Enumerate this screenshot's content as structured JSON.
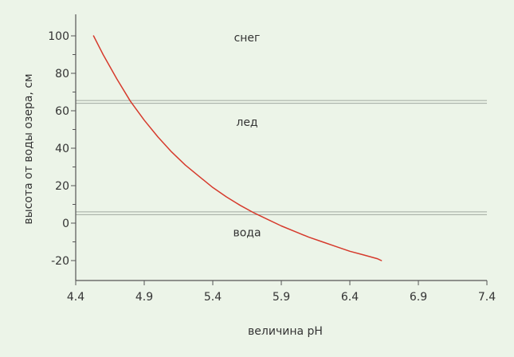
{
  "chart_data": {
    "type": "line",
    "title": "",
    "xlabel": "величина pH",
    "ylabel": "высота от воды озера, см",
    "xlim": [
      4.4,
      7.4
    ],
    "ylim": [
      -30,
      110
    ],
    "x_ticks": [
      4.4,
      4.9,
      5.4,
      5.9,
      6.4,
      6.9,
      7.4
    ],
    "x_tick_labels": [
      "4.4",
      "4.9",
      "5.4",
      "5.9",
      "6.4",
      "6.9",
      "7.4"
    ],
    "y_ticks": [
      -20,
      0,
      20,
      40,
      60,
      80,
      100
    ],
    "y_tick_labels": [
      "-20",
      "0",
      "20",
      "40",
      "60",
      "80",
      "100"
    ],
    "grid": false,
    "series": [
      {
        "color": "#d63a2c",
        "x": [
          4.53,
          4.6,
          4.7,
          4.8,
          4.9,
          5.0,
          5.1,
          5.2,
          5.3,
          5.4,
          5.5,
          5.6,
          5.7,
          5.8,
          5.9,
          6.0,
          6.1,
          6.2,
          6.3,
          6.4,
          6.5,
          6.6,
          6.63
        ],
        "y": [
          100,
          90,
          77,
          65,
          55,
          46,
          38,
          31,
          25,
          19,
          14,
          9.5,
          5.5,
          2,
          -1.5,
          -4.5,
          -7.5,
          -10,
          -12.5,
          -15,
          -17,
          -19,
          -20
        ]
      }
    ],
    "reference_lines": [
      {
        "y": 65.5,
        "color": "#a0a8a0"
      },
      {
        "y": 64,
        "color": "#a0a8a0"
      },
      {
        "y": 6,
        "color": "#a0a8a0"
      },
      {
        "y": 4.5,
        "color": "#a0a8a0"
      }
    ],
    "annotations": [
      {
        "text": "снег",
        "x": 5.65,
        "y": 97
      },
      {
        "text": "лед",
        "x": 5.65,
        "y": 52
      },
      {
        "text": "вода",
        "x": 5.65,
        "y": -7
      }
    ]
  },
  "colors": {
    "background": "#ecf4e8",
    "axis": "#555555",
    "line": "#d63a2c",
    "reference": "#a0a8a0",
    "text": "#333333"
  }
}
